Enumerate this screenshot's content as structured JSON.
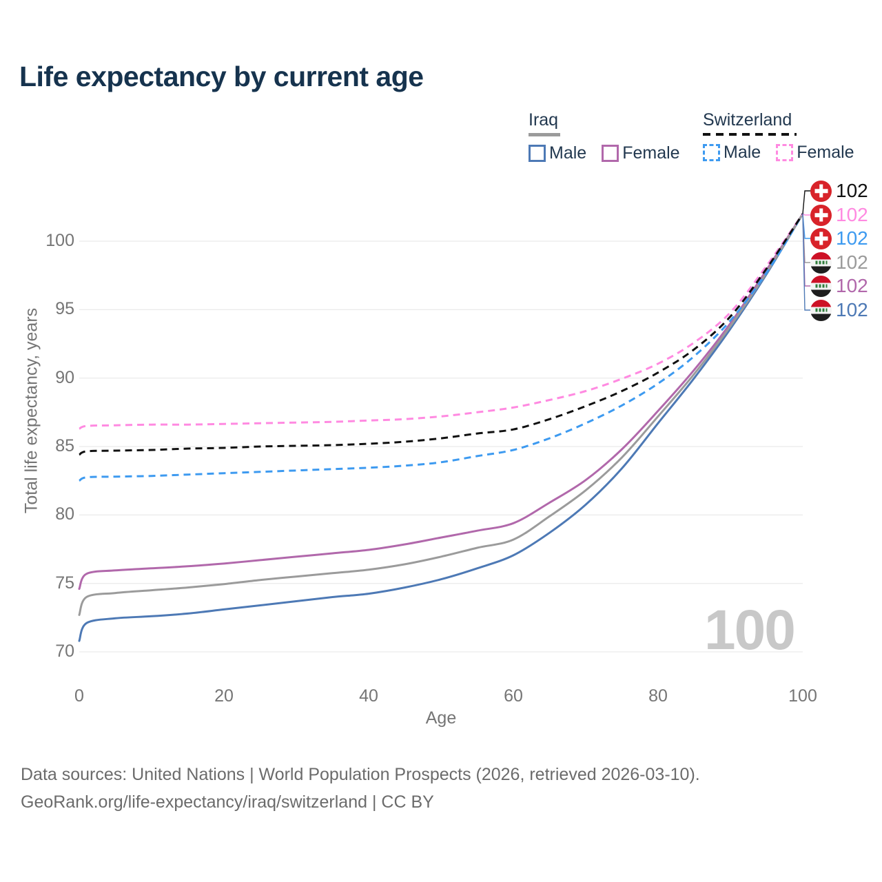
{
  "title": "Life expectancy by current age",
  "legend": {
    "groups": [
      {
        "label": "Iraq",
        "line_style": "solid",
        "line_color": "#9b9b9b",
        "items": [
          {
            "label": "Male",
            "color": "#4d79b5",
            "dashed": false
          },
          {
            "label": "Female",
            "color": "#b168ab",
            "dashed": false
          }
        ]
      },
      {
        "label": "Switzerland",
        "line_style": "dashed",
        "line_color": "#111111",
        "items": [
          {
            "label": "Male",
            "color": "#3d9af0",
            "dashed": true
          },
          {
            "label": "Female",
            "color": "#ff8ae1",
            "dashed": true
          }
        ]
      }
    ]
  },
  "chart_data": {
    "type": "line",
    "title": "Life expectancy by current age",
    "xlabel": "Age",
    "ylabel": "Total life expectancy, years",
    "xlim": [
      0,
      100
    ],
    "ylim": [
      70,
      103
    ],
    "x_ticks": [
      0,
      20,
      40,
      60,
      80,
      100
    ],
    "y_ticks": [
      70,
      75,
      80,
      85,
      90,
      95,
      100
    ],
    "grid": "horizontal-only",
    "legend_position": "top-right",
    "watermark": "100",
    "ages": [
      0,
      1,
      5,
      10,
      15,
      20,
      25,
      30,
      35,
      40,
      45,
      50,
      55,
      60,
      65,
      70,
      75,
      80,
      85,
      90,
      95,
      100
    ],
    "series": [
      {
        "name": "Switzerland Total",
        "country": "Switzerland",
        "sex": "total",
        "color": "#111111",
        "dashed": true,
        "flag": "ch",
        "end_label": "102",
        "label_row": 0,
        "values": [
          84.4,
          84.65,
          84.7,
          84.75,
          84.85,
          84.9,
          85.0,
          85.05,
          85.1,
          85.2,
          85.35,
          85.6,
          85.95,
          86.25,
          87.0,
          87.95,
          89.05,
          90.4,
          92.1,
          94.5,
          98.0,
          102
        ]
      },
      {
        "name": "Switzerland Female",
        "country": "Switzerland",
        "sex": "female",
        "color": "#ff8ae1",
        "dashed": true,
        "flag": "ch",
        "end_label": "102",
        "label_row": 1,
        "values": [
          86.3,
          86.5,
          86.55,
          86.6,
          86.6,
          86.65,
          86.7,
          86.75,
          86.8,
          86.9,
          87.0,
          87.2,
          87.5,
          87.85,
          88.4,
          89.05,
          89.95,
          91.05,
          92.6,
          94.8,
          98.2,
          102
        ]
      },
      {
        "name": "Switzerland Male",
        "country": "Switzerland",
        "sex": "male",
        "color": "#3d9af0",
        "dashed": true,
        "flag": "ch",
        "end_label": "102",
        "label_row": 2,
        "values": [
          82.5,
          82.75,
          82.8,
          82.85,
          82.95,
          83.05,
          83.15,
          83.25,
          83.35,
          83.45,
          83.6,
          83.85,
          84.3,
          84.75,
          85.6,
          86.7,
          88.0,
          89.6,
          91.6,
          94.2,
          97.7,
          102
        ]
      },
      {
        "name": "Iraq Total",
        "country": "Iraq",
        "sex": "total",
        "color": "#9b9b9b",
        "dashed": false,
        "flag": "iq",
        "end_label": "102",
        "label_row": 3,
        "values": [
          72.7,
          74.0,
          74.3,
          74.5,
          74.7,
          74.95,
          75.25,
          75.5,
          75.75,
          76.0,
          76.4,
          76.95,
          77.6,
          78.2,
          79.9,
          81.8,
          84.2,
          87.2,
          90.3,
          93.8,
          97.7,
          102
        ]
      },
      {
        "name": "Iraq Female",
        "country": "Iraq",
        "sex": "female",
        "color": "#b168ab",
        "dashed": false,
        "flag": "iq",
        "end_label": "102",
        "label_row": 4,
        "values": [
          74.6,
          75.7,
          75.95,
          76.1,
          76.25,
          76.45,
          76.7,
          76.95,
          77.2,
          77.45,
          77.85,
          78.35,
          78.85,
          79.4,
          80.9,
          82.55,
          84.8,
          87.6,
          90.6,
          94.0,
          97.9,
          102
        ]
      },
      {
        "name": "Iraq Male",
        "country": "Iraq",
        "sex": "male",
        "color": "#4d79b5",
        "dashed": false,
        "flag": "iq",
        "end_label": "102",
        "label_row": 5,
        "values": [
          70.8,
          72.1,
          72.45,
          72.6,
          72.8,
          73.1,
          73.4,
          73.7,
          74.0,
          74.25,
          74.7,
          75.3,
          76.1,
          77.05,
          78.7,
          80.75,
          83.4,
          86.7,
          90.0,
          93.6,
          97.6,
          102
        ]
      }
    ]
  },
  "footer": {
    "line1": "Data sources: United Nations | World Population Prospects (2026, retrieved 2026-03-10).",
    "line2": "GeoRank.org/life-expectancy/iraq/switzerland | CC BY"
  }
}
